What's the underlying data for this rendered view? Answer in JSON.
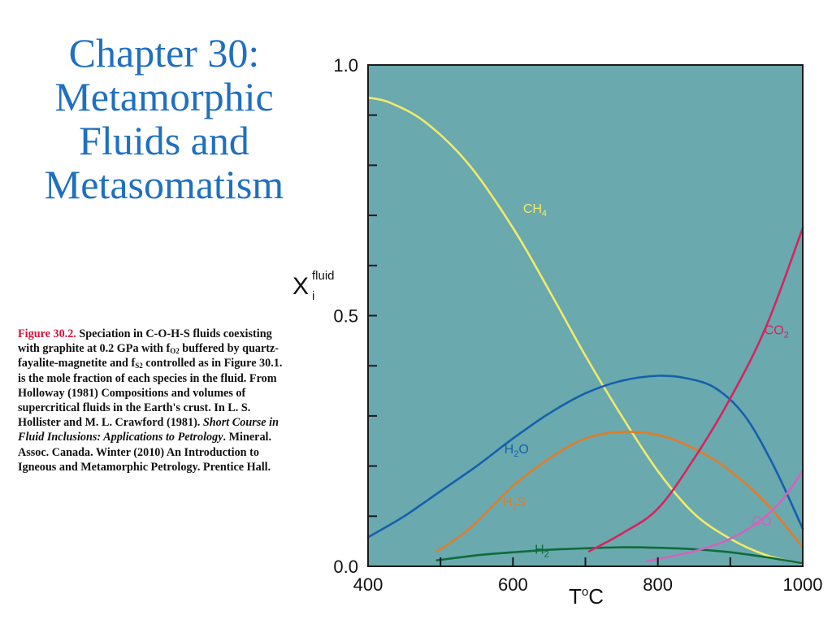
{
  "slide": {
    "title_lines": [
      "Chapter 30:",
      "Metamorphic",
      "Fluids and",
      "Metasomatism"
    ]
  },
  "caption": {
    "figure_label": "Figure 30.2.",
    "line_1": "Speciation in C-O-H-S fluids coexisting with graphite at 0.2 GPa with f",
    "sub_o2": "O2",
    "line_2": " buffered by quartz-fayalite-magnetite and f",
    "sub_s2": "S2",
    "line_3": " controlled as in Figure 30.1. is the mole fraction of each species in the fluid. From Holloway (1981) Compositions and volumes of supercritical fluids in the Earth's crust. In L. S. Hollister and M. L. Crawford (1981). ",
    "italic_text": "Short Course in Fluid Inclusions: Applications to Petrology",
    "line_4": ". Mineral. Assoc. Canada. Winter (2010) An Introduction to Igneous and Metamorphic Petrology. Prentice Hall."
  },
  "chart_data": {
    "type": "line",
    "background_color": "#6aa9ae",
    "x_axis": {
      "label_main": "T",
      "label_sup": "o",
      "label_tail": "C",
      "range": [
        400,
        1000
      ],
      "tick_labels": [
        "400",
        "600",
        "800",
        "1000"
      ],
      "major_ticks": [
        400,
        600,
        800,
        1000
      ],
      "minor_ticks": [
        500,
        700,
        900
      ]
    },
    "y_axis": {
      "label_main": "X",
      "label_sub": "i",
      "label_sup": "fluid",
      "range": [
        0.0,
        1.0
      ],
      "tick_labels": [
        "0.0",
        "0.5",
        "1.0"
      ],
      "major_ticks": [
        0.0,
        0.5,
        1.0
      ],
      "minor_ticks": [
        0.1,
        0.2,
        0.3,
        0.4,
        0.6,
        0.7,
        0.8,
        0.9
      ]
    },
    "series": [
      {
        "key": "CH4",
        "label_main": "CH",
        "label_sub": "4",
        "color": "#f2ea6a",
        "label_at": [
          614,
          0.705
        ],
        "points": [
          [
            400,
            0.935
          ],
          [
            430,
            0.925
          ],
          [
            480,
            0.885
          ],
          [
            540,
            0.8
          ],
          [
            600,
            0.675
          ],
          [
            650,
            0.55
          ],
          [
            700,
            0.42
          ],
          [
            750,
            0.3
          ],
          [
            800,
            0.19
          ],
          [
            850,
            0.105
          ],
          [
            900,
            0.055
          ],
          [
            950,
            0.022
          ],
          [
            1000,
            0.005
          ]
        ]
      },
      {
        "key": "H2O",
        "label_main": "H",
        "label_sub": "2",
        "label_tail": "O",
        "color": "#1560ad",
        "label_at": [
          588,
          0.225
        ],
        "points": [
          [
            400,
            0.058
          ],
          [
            450,
            0.1
          ],
          [
            500,
            0.15
          ],
          [
            550,
            0.2
          ],
          [
            600,
            0.255
          ],
          [
            650,
            0.305
          ],
          [
            700,
            0.345
          ],
          [
            750,
            0.37
          ],
          [
            800,
            0.38
          ],
          [
            840,
            0.375
          ],
          [
            880,
            0.355
          ],
          [
            920,
            0.3
          ],
          [
            960,
            0.2
          ],
          [
            1000,
            0.075
          ]
        ]
      },
      {
        "key": "H2S",
        "label_main": "H",
        "label_sub": "2",
        "label_tail": "S",
        "color": "#e07d2a",
        "label_at": [
          586,
          0.12
        ],
        "points": [
          [
            495,
            0.03
          ],
          [
            540,
            0.075
          ],
          [
            600,
            0.16
          ],
          [
            650,
            0.215
          ],
          [
            700,
            0.255
          ],
          [
            750,
            0.268
          ],
          [
            800,
            0.262
          ],
          [
            850,
            0.235
          ],
          [
            900,
            0.19
          ],
          [
            950,
            0.125
          ],
          [
            1000,
            0.038
          ]
        ]
      },
      {
        "key": "H2",
        "label_main": "H",
        "label_sub": "2",
        "color": "#0f6b3c",
        "label_at": [
          630,
          0.025
        ],
        "points": [
          [
            495,
            0.012
          ],
          [
            550,
            0.022
          ],
          [
            600,
            0.028
          ],
          [
            650,
            0.033
          ],
          [
            700,
            0.036
          ],
          [
            750,
            0.038
          ],
          [
            800,
            0.037
          ],
          [
            850,
            0.034
          ],
          [
            900,
            0.028
          ],
          [
            950,
            0.018
          ],
          [
            1000,
            0.006
          ]
        ]
      },
      {
        "key": "CO2",
        "label_main": "CO",
        "label_sub": "2",
        "color": "#d4255e",
        "label_at": [
          947,
          0.463
        ],
        "points": [
          [
            705,
            0.03
          ],
          [
            750,
            0.065
          ],
          [
            800,
            0.115
          ],
          [
            850,
            0.215
          ],
          [
            900,
            0.335
          ],
          [
            950,
            0.48
          ],
          [
            1000,
            0.675
          ]
        ]
      },
      {
        "key": "CO",
        "label_main": "CO",
        "label_sub": "",
        "color": "#d263bc",
        "label_at": [
          930,
          0.082
        ],
        "points": [
          [
            785,
            0.01
          ],
          [
            850,
            0.03
          ],
          [
            900,
            0.055
          ],
          [
            940,
            0.09
          ],
          [
            970,
            0.13
          ],
          [
            1000,
            0.19
          ]
        ]
      }
    ]
  }
}
